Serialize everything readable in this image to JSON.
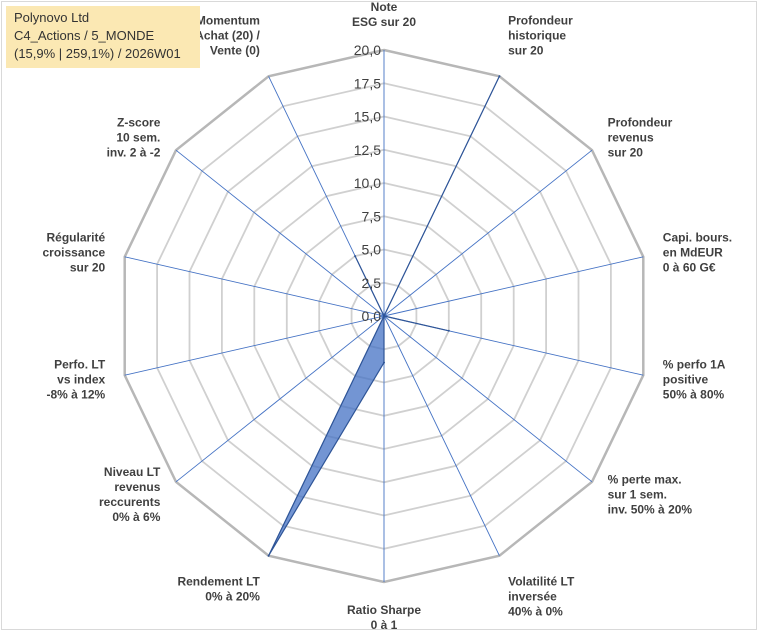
{
  "title": {
    "line1": "Polynovo Ltd",
    "line2": "C4_Actions / 5_MONDE",
    "line3": "(15,9% | 259,1%) / 2026W01"
  },
  "chart_data": {
    "type": "radar",
    "rmin": 0,
    "rmax": 20,
    "tick_step": 2.5,
    "tick_labels": [
      "0,0",
      "2,5",
      "5,0",
      "7,5",
      "10,0",
      "12,5",
      "15,0",
      "17,5",
      "20,0"
    ],
    "categories": [
      [
        "Note",
        "ESG sur 20"
      ],
      [
        "Profondeur",
        "historique",
        "sur 20"
      ],
      [
        "Profondeur",
        "revenus",
        "sur 20"
      ],
      [
        "Capi. bours.",
        "en MdEUR",
        "0 à 60 G€"
      ],
      [
        "% perfo 1A",
        "positive",
        "50% à 80%"
      ],
      [
        "% perte max.",
        "sur 1 sem.",
        "inv. 50% à 20%"
      ],
      [
        "Volatilité LT",
        "inversée",
        "40% à 0%"
      ],
      [
        "Ratio Sharpe",
        "0 à 1"
      ],
      [
        "Rendement LT",
        "0% à 20%"
      ],
      [
        "Niveau LT",
        "revenus",
        "reccurents",
        "0% à 6%"
      ],
      [
        "Perfo. LT",
        "vs index",
        "-8% à 12%"
      ],
      [
        "Régularité",
        "croissance",
        "sur 20"
      ],
      [
        "Z-score",
        "10 sem.",
        "inv. 2 à -2"
      ],
      [
        "Momentum",
        "Achat (20) /",
        "Vente (0)"
      ]
    ],
    "series": [
      {
        "name": "Polynovo Ltd",
        "values": [
          0,
          20,
          0,
          0,
          5,
          0,
          0,
          3.5,
          20,
          0,
          0,
          0,
          0,
          5
        ],
        "color": "#4472c4"
      }
    ]
  }
}
